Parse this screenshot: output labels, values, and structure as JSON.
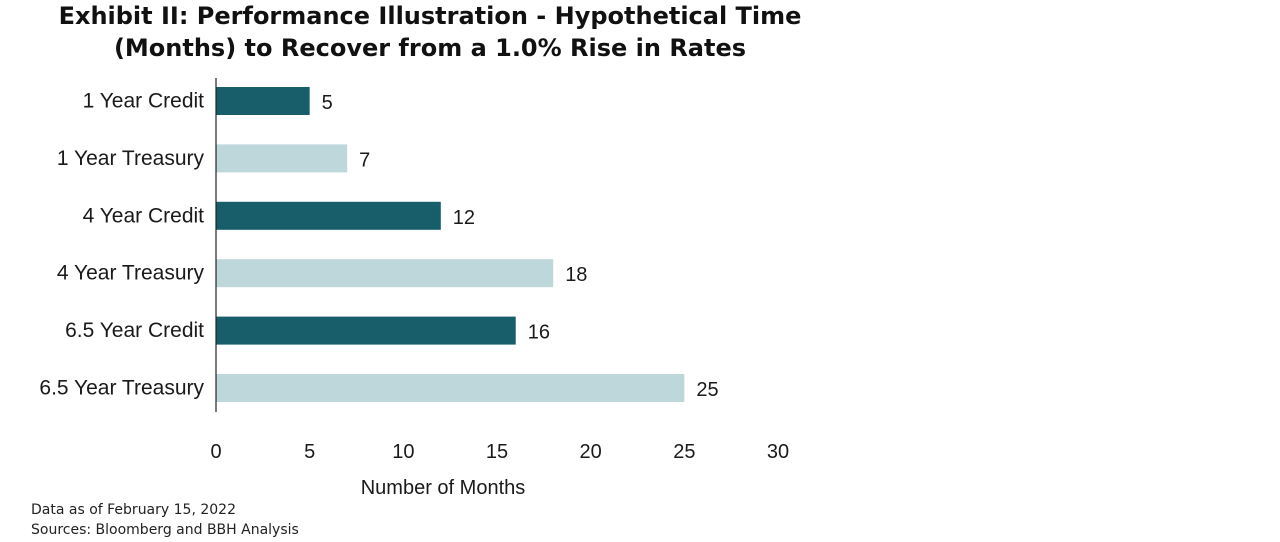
{
  "chart_data": {
    "type": "bar",
    "orientation": "horizontal",
    "title": "Exhibit II: Performance Illustration - Hypothetical Time (Months) to Recover from a 1.0% Rise in Rates",
    "title_lines": [
      "Exhibit II: Performance Illustration - Hypothetical Time",
      "(Months) to Recover from a 1.0% Rise in Rates"
    ],
    "categories": [
      "1 Year Credit",
      "1 Year Treasury",
      "4 Year Credit",
      "4 Year Treasury",
      "6.5 Year Credit",
      "6.5 Year Treasury"
    ],
    "values": [
      5,
      7,
      12,
      18,
      16,
      25
    ],
    "bar_colors": [
      "#175e6a",
      "#bdd7da",
      "#175e6a",
      "#bdd7da",
      "#175e6a",
      "#bdd7da"
    ],
    "xlabel": "Number of Months",
    "ylabel": "",
    "xlim": [
      0,
      30
    ],
    "xticks": [
      0,
      5,
      10,
      15,
      20,
      25,
      30
    ],
    "grid": false,
    "data_labels": true
  },
  "footnotes": {
    "data_as_of": "Data as of February 15, 2022",
    "sources": "Sources: Bloomberg and BBH Analysis"
  },
  "colors": {
    "credit": "#175e6a",
    "treasury": "#bdd7da",
    "axis": "#222222"
  }
}
